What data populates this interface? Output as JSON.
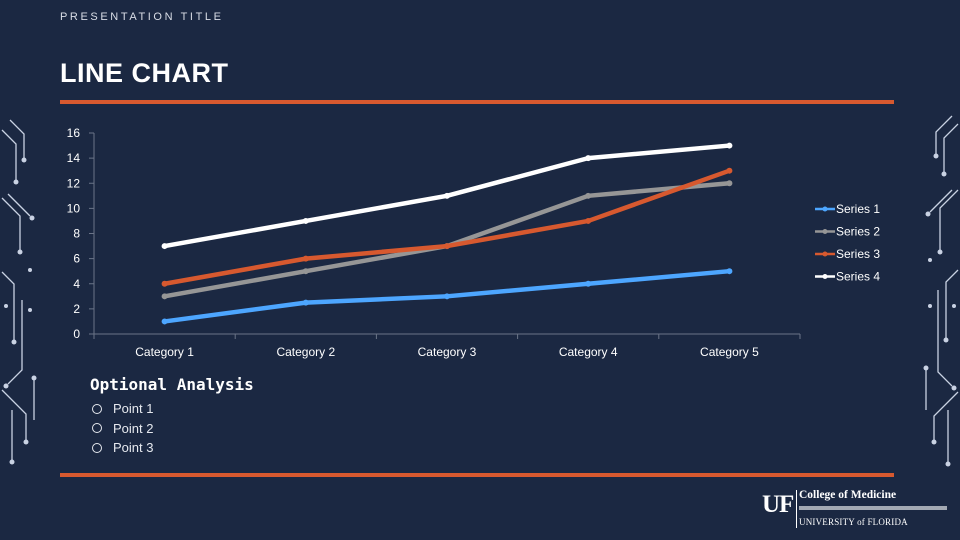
{
  "header": {
    "presentation_title": "PRESENTATION TITLE",
    "slide_title": "LINE CHART"
  },
  "chart_data": {
    "type": "line",
    "categories": [
      "Category 1",
      "Category 2",
      "Category 3",
      "Category 4",
      "Category 5"
    ],
    "series": [
      {
        "name": "Series 1",
        "values": [
          1,
          2.5,
          3,
          4,
          5
        ],
        "color": "#4da6ff"
      },
      {
        "name": "Series 2",
        "values": [
          3,
          5,
          7,
          11,
          12
        ],
        "color": "#969696"
      },
      {
        "name": "Series 3",
        "values": [
          4,
          6,
          7,
          9,
          13
        ],
        "color": "#d7592f"
      },
      {
        "name": "Series 4",
        "values": [
          7,
          9,
          11,
          14,
          15
        ],
        "color": "#ffffff"
      }
    ],
    "ylim": [
      0,
      16
    ],
    "yticks": [
      "0",
      "2",
      "4",
      "6",
      "8",
      "10",
      "12",
      "14",
      "16"
    ],
    "title": "",
    "xlabel": "",
    "ylabel": "",
    "grid": false,
    "legend": "right"
  },
  "analysis": {
    "heading": "Optional Analysis",
    "points": [
      "Point 1",
      "Point 2",
      "Point 3"
    ]
  },
  "logo": {
    "mark": "UF",
    "college": "College of Medicine",
    "university": "UNIVERSITY of FLORIDA"
  },
  "colors": {
    "background": "#1b2842",
    "accent": "#d7592f",
    "text": "#ffffff"
  }
}
